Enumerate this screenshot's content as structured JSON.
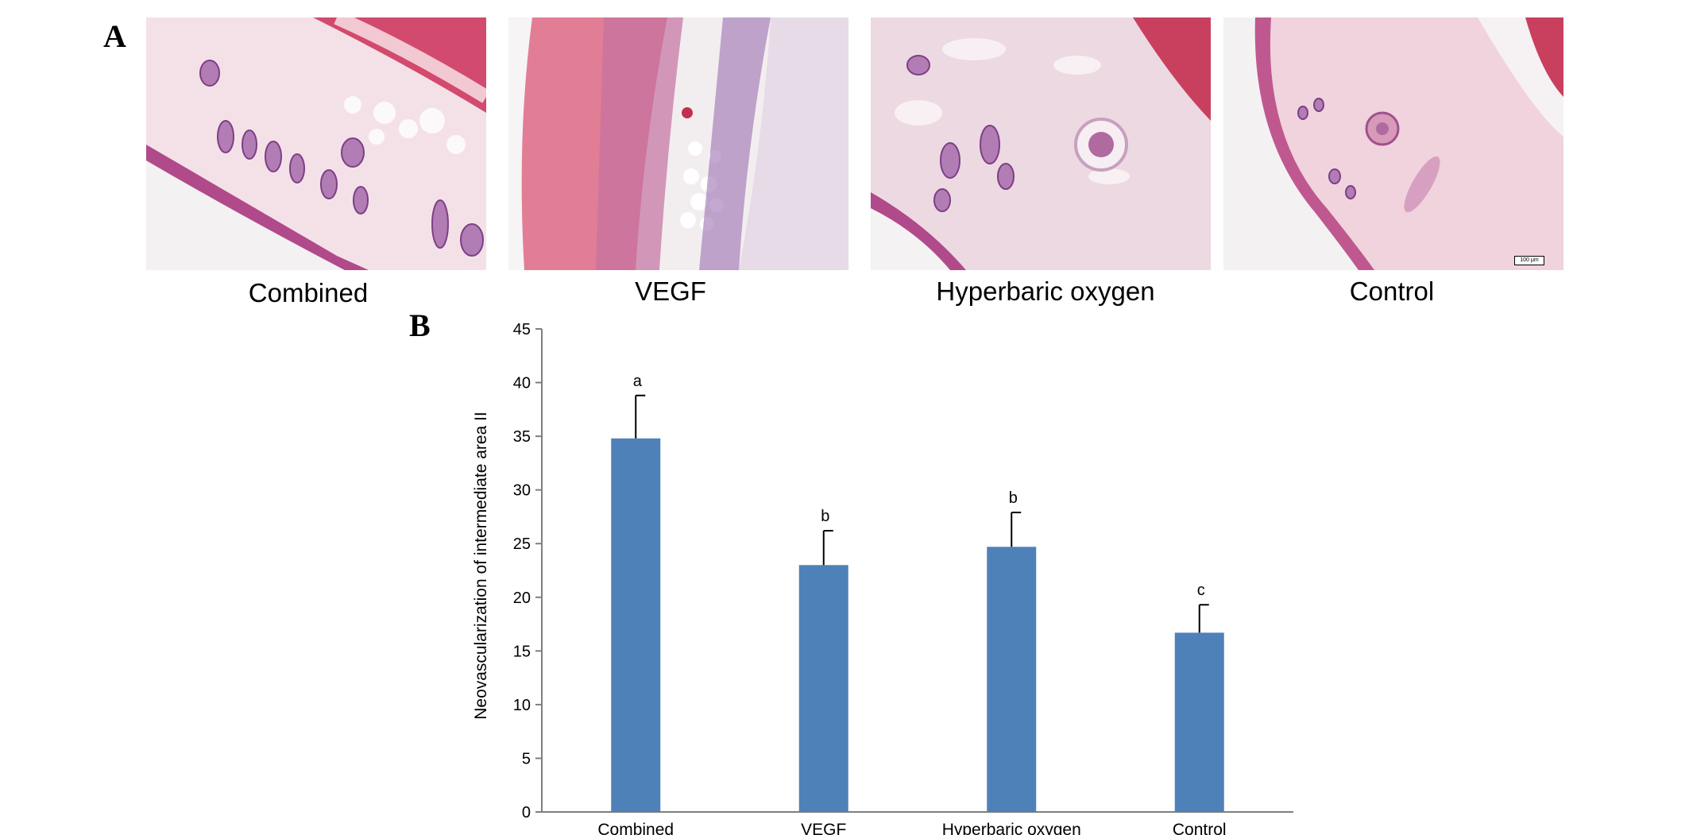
{
  "panel_a": {
    "letter": "A",
    "images": [
      {
        "label": "Combined",
        "icon": "histology-micrograph-icon"
      },
      {
        "label": "VEGF",
        "icon": "histology-micrograph-icon"
      },
      {
        "label": "Hyperbaric oxygen",
        "icon": "histology-micrograph-icon"
      },
      {
        "label": "Control",
        "icon": "histology-micrograph-icon"
      }
    ],
    "scale_bar": "100 μm",
    "colors": {
      "stain_pink": "#e9b7c6",
      "stain_purple": "#a05a9a",
      "stain_red": "#c9405e",
      "background": "#f2eef0"
    }
  },
  "panel_b": {
    "letter": "B"
  },
  "chart_data": {
    "type": "bar",
    "categories": [
      "Combined",
      "VEGF",
      "Hyperbaric oxygen",
      "Control"
    ],
    "values": [
      34.8,
      23.0,
      24.7,
      16.7
    ],
    "errors": [
      4.0,
      3.2,
      3.2,
      2.6
    ],
    "annotations": [
      "a",
      "b",
      "b",
      "c"
    ],
    "ylabel": "Neovascularization of intermediate area II",
    "xlabel": "",
    "ylim": [
      0,
      45
    ],
    "yticks": [
      0,
      5,
      10,
      15,
      20,
      25,
      30,
      35,
      40,
      45
    ],
    "grid": false,
    "bar_color": "#4f81b9"
  }
}
